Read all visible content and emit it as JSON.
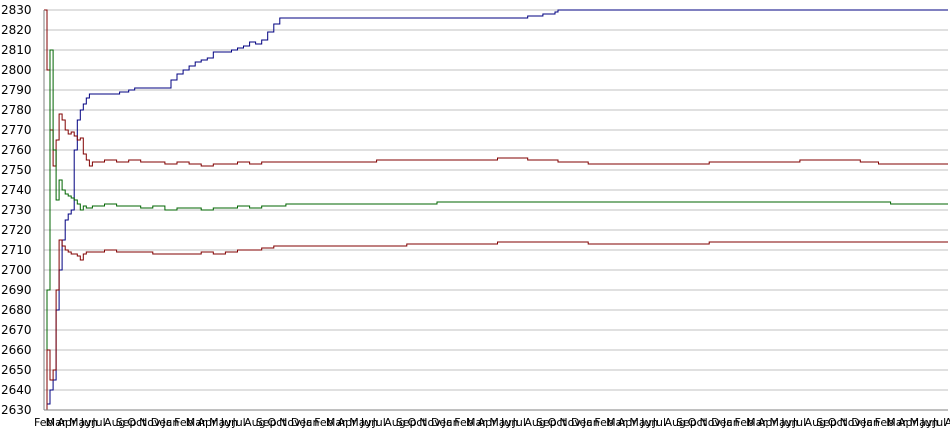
{
  "chart_data": {
    "type": "line",
    "title": "",
    "xlabel": "",
    "ylabel": "",
    "ylim": [
      2630,
      2830
    ],
    "ytick_step": 10,
    "grid": true,
    "legend": "none",
    "x_labels": [
      "Feb",
      "Mar",
      "Apr",
      "May",
      "Jun",
      "Jul",
      "Aug",
      "Sep",
      "Oct",
      "Nov",
      "Dec",
      "Jan",
      "Feb",
      "Mar",
      "Apr",
      "May",
      "Jun",
      "Jul",
      "Aug",
      "Sep",
      "Oct",
      "Nov",
      "Dec",
      "Jan",
      "Feb",
      "Mar",
      "Apr",
      "May",
      "Jun",
      "Jul",
      "Aug",
      "Sep",
      "Oct",
      "Nov",
      "Dec",
      "Jan",
      "Feb",
      "Mar",
      "Apr",
      "May",
      "Jun",
      "Jul",
      "Aug",
      "Sep",
      "Oct",
      "Nov",
      "Dec",
      "Jan",
      "Feb",
      "Mar",
      "Apr",
      "May",
      "Jun",
      "Jul",
      "Aug",
      "Sep",
      "Oct",
      "Nov",
      "Dec",
      "Jan",
      "Feb",
      "Mar",
      "Apr",
      "May",
      "Jun",
      "Jul",
      "Aug",
      "Sep",
      "Oct",
      "Nov",
      "Dec",
      "Jan",
      "Feb",
      "Mar",
      "Apr",
      "May",
      "Jun",
      "Jul",
      "Aug",
      "Sep"
    ],
    "x_count": 300,
    "series": [
      {
        "color": "#000080",
        "points": [
          [
            0,
            2630
          ],
          [
            1,
            2633
          ],
          [
            2,
            2640
          ],
          [
            3,
            2645
          ],
          [
            4,
            2680
          ],
          [
            5,
            2700
          ],
          [
            6,
            2715
          ],
          [
            7,
            2725
          ],
          [
            8,
            2728
          ],
          [
            9,
            2730
          ],
          [
            10,
            2760
          ],
          [
            11,
            2775
          ],
          [
            12,
            2780
          ],
          [
            13,
            2783
          ],
          [
            14,
            2786
          ],
          [
            15,
            2788
          ],
          [
            20,
            2788
          ],
          [
            25,
            2789
          ],
          [
            28,
            2790
          ],
          [
            30,
            2791
          ],
          [
            40,
            2791
          ],
          [
            42,
            2795
          ],
          [
            44,
            2798
          ],
          [
            46,
            2800
          ],
          [
            48,
            2802
          ],
          [
            50,
            2804
          ],
          [
            52,
            2805
          ],
          [
            54,
            2806
          ],
          [
            56,
            2809
          ],
          [
            60,
            2809
          ],
          [
            62,
            2810
          ],
          [
            64,
            2811
          ],
          [
            66,
            2812
          ],
          [
            68,
            2814
          ],
          [
            70,
            2813
          ],
          [
            72,
            2815
          ],
          [
            74,
            2819
          ],
          [
            76,
            2823
          ],
          [
            78,
            2826
          ],
          [
            100,
            2826
          ],
          [
            130,
            2826
          ],
          [
            150,
            2826
          ],
          [
            160,
            2827
          ],
          [
            165,
            2828
          ],
          [
            169,
            2829
          ],
          [
            170,
            2830
          ],
          [
            200,
            2830
          ],
          [
            250,
            2830
          ],
          [
            299,
            2830
          ]
        ]
      },
      {
        "color": "#800000",
        "points": [
          [
            0,
            2830
          ],
          [
            1,
            2800
          ],
          [
            2,
            2770
          ],
          [
            3,
            2752
          ],
          [
            4,
            2765
          ],
          [
            5,
            2778
          ],
          [
            6,
            2775
          ],
          [
            7,
            2770
          ],
          [
            8,
            2768
          ],
          [
            9,
            2769
          ],
          [
            10,
            2767
          ],
          [
            11,
            2765
          ],
          [
            12,
            2766
          ],
          [
            13,
            2758
          ],
          [
            14,
            2755
          ],
          [
            15,
            2752
          ],
          [
            16,
            2754
          ],
          [
            18,
            2754
          ],
          [
            20,
            2755
          ],
          [
            24,
            2754
          ],
          [
            28,
            2755
          ],
          [
            32,
            2754
          ],
          [
            36,
            2754
          ],
          [
            40,
            2753
          ],
          [
            44,
            2754
          ],
          [
            48,
            2753
          ],
          [
            52,
            2752
          ],
          [
            56,
            2753
          ],
          [
            60,
            2753
          ],
          [
            64,
            2754
          ],
          [
            68,
            2753
          ],
          [
            72,
            2754
          ],
          [
            76,
            2754
          ],
          [
            80,
            2754
          ],
          [
            90,
            2754
          ],
          [
            100,
            2754
          ],
          [
            110,
            2755
          ],
          [
            120,
            2755
          ],
          [
            130,
            2755
          ],
          [
            140,
            2755
          ],
          [
            150,
            2756
          ],
          [
            160,
            2755
          ],
          [
            170,
            2754
          ],
          [
            180,
            2753
          ],
          [
            200,
            2753
          ],
          [
            220,
            2754
          ],
          [
            240,
            2754
          ],
          [
            250,
            2755
          ],
          [
            260,
            2755
          ],
          [
            270,
            2754
          ],
          [
            276,
            2753
          ],
          [
            280,
            2753
          ],
          [
            290,
            2753
          ],
          [
            299,
            2753
          ]
        ]
      },
      {
        "color": "#006400",
        "points": [
          [
            0,
            2630
          ],
          [
            1,
            2690
          ],
          [
            2,
            2810
          ],
          [
            3,
            2760
          ],
          [
            4,
            2735
          ],
          [
            5,
            2745
          ],
          [
            6,
            2740
          ],
          [
            7,
            2738
          ],
          [
            8,
            2737
          ],
          [
            9,
            2736
          ],
          [
            10,
            2735
          ],
          [
            11,
            2733
          ],
          [
            12,
            2730
          ],
          [
            13,
            2732
          ],
          [
            14,
            2731
          ],
          [
            16,
            2732
          ],
          [
            18,
            2732
          ],
          [
            20,
            2733
          ],
          [
            24,
            2732
          ],
          [
            28,
            2732
          ],
          [
            32,
            2731
          ],
          [
            36,
            2732
          ],
          [
            40,
            2730
          ],
          [
            44,
            2731
          ],
          [
            48,
            2731
          ],
          [
            52,
            2730
          ],
          [
            56,
            2731
          ],
          [
            60,
            2731
          ],
          [
            64,
            2732
          ],
          [
            68,
            2731
          ],
          [
            72,
            2732
          ],
          [
            76,
            2732
          ],
          [
            80,
            2733
          ],
          [
            90,
            2733
          ],
          [
            100,
            2733
          ],
          [
            110,
            2733
          ],
          [
            120,
            2733
          ],
          [
            130,
            2734
          ],
          [
            140,
            2734
          ],
          [
            150,
            2734
          ],
          [
            160,
            2734
          ],
          [
            170,
            2734
          ],
          [
            180,
            2734
          ],
          [
            200,
            2734
          ],
          [
            220,
            2734
          ],
          [
            240,
            2734
          ],
          [
            260,
            2734
          ],
          [
            270,
            2734
          ],
          [
            280,
            2733
          ],
          [
            290,
            2733
          ],
          [
            299,
            2733
          ]
        ]
      },
      {
        "color": "#800000",
        "points": [
          [
            0,
            2630
          ],
          [
            1,
            2660
          ],
          [
            2,
            2645
          ],
          [
            3,
            2650
          ],
          [
            4,
            2690
          ],
          [
            5,
            2715
          ],
          [
            6,
            2712
          ],
          [
            7,
            2710
          ],
          [
            8,
            2709
          ],
          [
            9,
            2708
          ],
          [
            10,
            2708
          ],
          [
            11,
            2707
          ],
          [
            12,
            2705
          ],
          [
            13,
            2708
          ],
          [
            14,
            2709
          ],
          [
            16,
            2709
          ],
          [
            18,
            2709
          ],
          [
            20,
            2710
          ],
          [
            24,
            2709
          ],
          [
            28,
            2709
          ],
          [
            32,
            2709
          ],
          [
            36,
            2708
          ],
          [
            40,
            2708
          ],
          [
            44,
            2708
          ],
          [
            48,
            2708
          ],
          [
            52,
            2709
          ],
          [
            56,
            2708
          ],
          [
            60,
            2709
          ],
          [
            64,
            2710
          ],
          [
            68,
            2710
          ],
          [
            72,
            2711
          ],
          [
            76,
            2712
          ],
          [
            80,
            2712
          ],
          [
            90,
            2712
          ],
          [
            100,
            2712
          ],
          [
            110,
            2712
          ],
          [
            120,
            2713
          ],
          [
            130,
            2713
          ],
          [
            140,
            2713
          ],
          [
            150,
            2714
          ],
          [
            160,
            2714
          ],
          [
            170,
            2714
          ],
          [
            180,
            2713
          ],
          [
            200,
            2713
          ],
          [
            220,
            2714
          ],
          [
            240,
            2714
          ],
          [
            260,
            2714
          ],
          [
            270,
            2714
          ],
          [
            280,
            2714
          ],
          [
            290,
            2714
          ],
          [
            299,
            2714
          ]
        ]
      }
    ]
  }
}
